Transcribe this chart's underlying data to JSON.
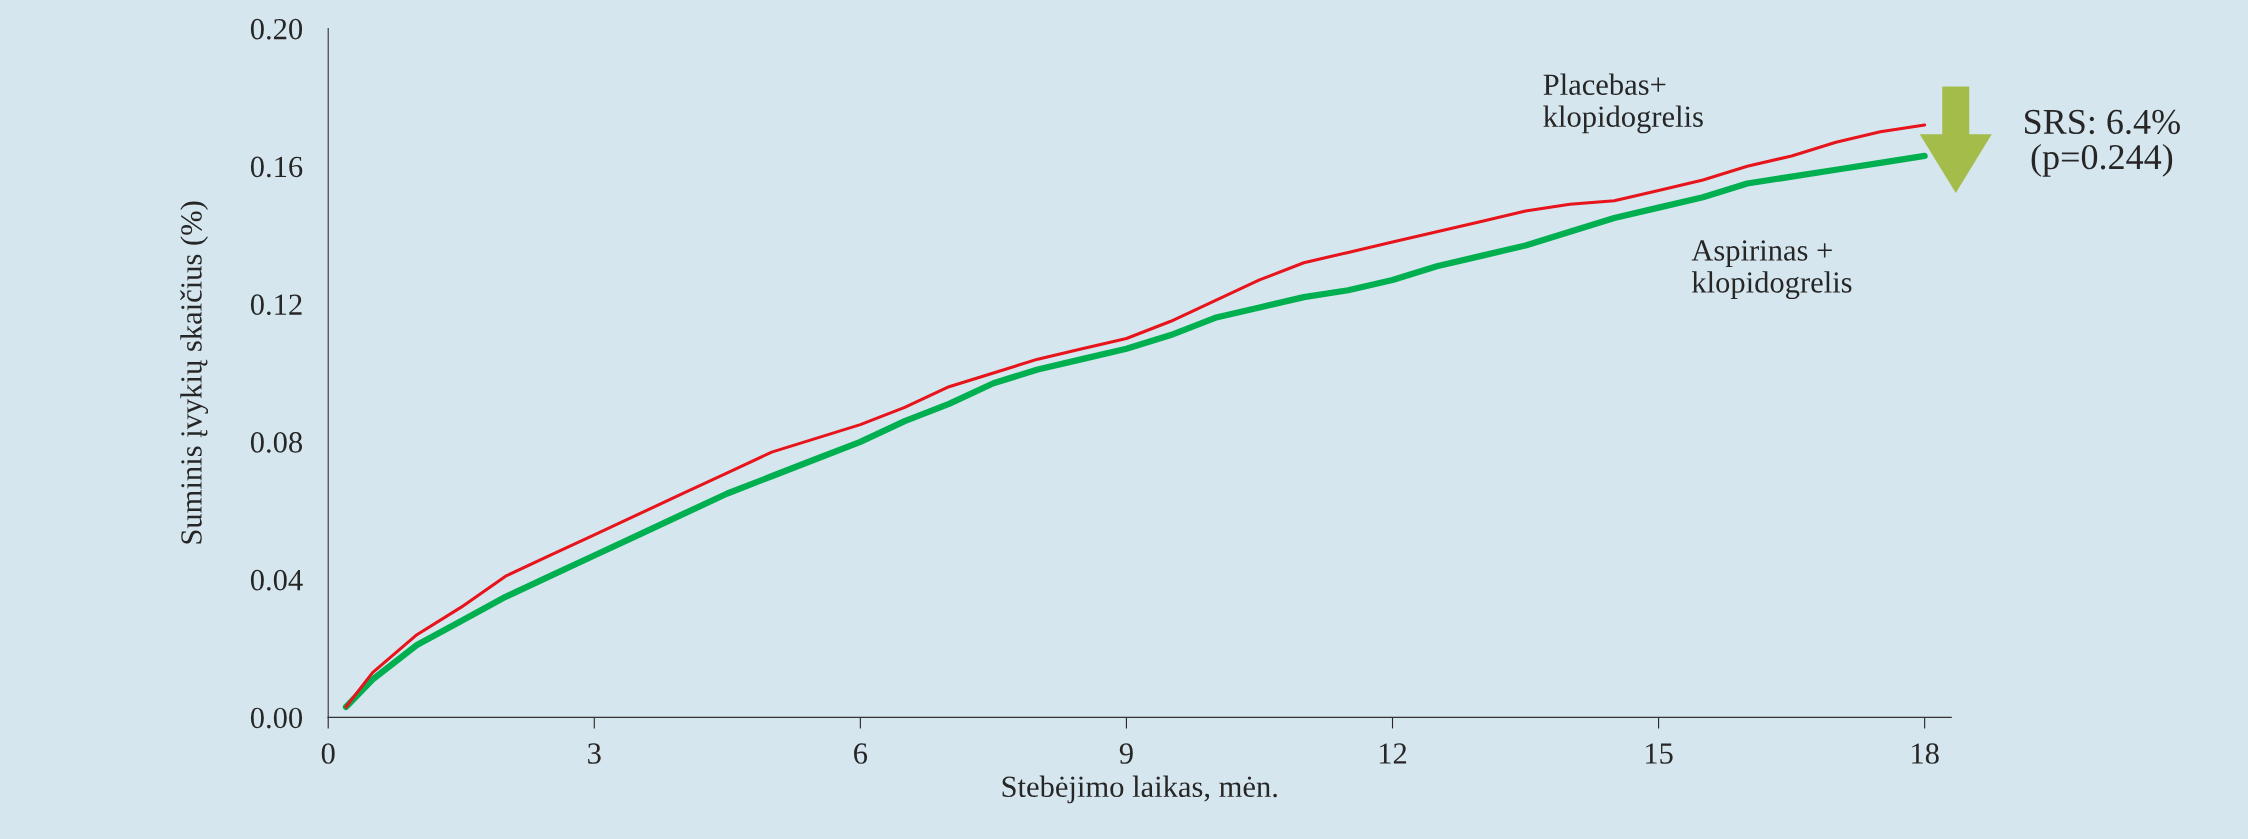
{
  "chart_data": {
    "type": "line",
    "xlabel": "Stebėjimo laikas, mėn.",
    "ylabel": "Suminis įvykių skaičius (%)",
    "x": [
      0.2,
      0.5,
      1,
      1.5,
      2,
      2.5,
      3,
      3.5,
      4,
      4.5,
      5,
      5.5,
      6,
      6.5,
      7,
      7.5,
      8,
      8.5,
      9,
      9.5,
      10,
      10.5,
      11,
      11.5,
      12,
      12.5,
      13,
      13.5,
      14,
      14.5,
      15,
      15.5,
      16,
      16.5,
      17,
      17.5,
      18
    ],
    "series": [
      {
        "name": "Placebas+\nklopidogrelis",
        "color": "#e8141c",
        "values": [
          0.003,
          0.013,
          0.024,
          0.032,
          0.041,
          0.047,
          0.053,
          0.059,
          0.065,
          0.071,
          0.077,
          0.081,
          0.085,
          0.09,
          0.096,
          0.1,
          0.104,
          0.107,
          0.11,
          0.115,
          0.121,
          0.127,
          0.132,
          0.135,
          0.138,
          0.141,
          0.144,
          0.147,
          0.149,
          0.15,
          0.153,
          0.156,
          0.16,
          0.163,
          0.167,
          0.17,
          0.172
        ]
      },
      {
        "name": "Aspirinas +\nklopidogrelis",
        "color": "#00b050",
        "values": [
          0.003,
          0.011,
          0.021,
          0.028,
          0.035,
          0.041,
          0.047,
          0.053,
          0.059,
          0.065,
          0.07,
          0.075,
          0.08,
          0.086,
          0.091,
          0.097,
          0.101,
          0.104,
          0.107,
          0.111,
          0.116,
          0.119,
          0.122,
          0.124,
          0.127,
          0.131,
          0.134,
          0.137,
          0.141,
          0.145,
          0.148,
          0.151,
          0.155,
          0.157,
          0.159,
          0.161,
          0.163
        ]
      }
    ],
    "annotations": [
      "SRS: 6.4%\n(p=0.244)"
    ],
    "xlim": [
      0,
      18.3
    ],
    "xticks": [
      0,
      3,
      6,
      9,
      12,
      15,
      18
    ],
    "ylim": [
      0,
      0.2
    ],
    "yticks": [
      {
        "value": 0,
        "label": "0.00"
      },
      {
        "value": 0.04,
        "label": "0.04"
      },
      {
        "value": 0.08,
        "label": "0.08"
      },
      {
        "value": 0.12,
        "label": "0.12"
      },
      {
        "value": 0.16,
        "label": "0.16"
      },
      {
        "value": 0.2,
        "label": "0.20"
      }
    ],
    "grid": false,
    "legend": false
  }
}
